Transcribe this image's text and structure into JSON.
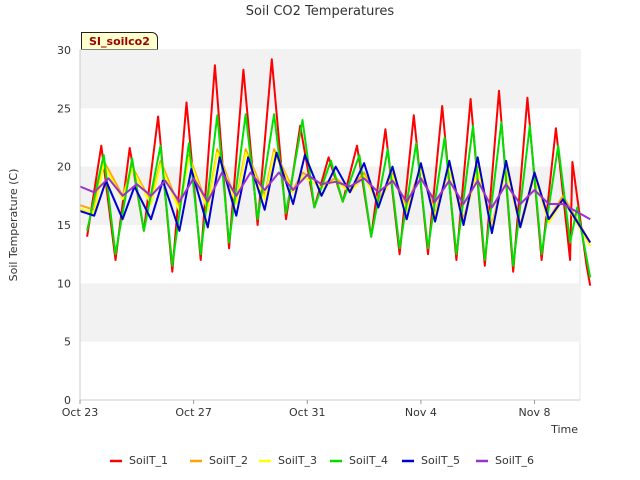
{
  "chart_data": {
    "type": "line",
    "title": "Soil CO2 Temperatures",
    "badge": "SI_soilco2",
    "xlabel": "Time",
    "ylabel": "Soil Temperature (C)",
    "ylim": [
      0,
      30
    ],
    "yticks": [
      0,
      5,
      10,
      15,
      20,
      25,
      30
    ],
    "xlim": [
      "2023-10-23",
      "2023-11-09.6"
    ],
    "xticks": [
      {
        "date": "2023-10-23",
        "label": "Oct 23"
      },
      {
        "date": "2023-10-27",
        "label": "Oct 27"
      },
      {
        "date": "2023-10-31",
        "label": "Oct 31"
      },
      {
        "date": "2023-11-04",
        "label": "Nov 4"
      },
      {
        "date": "2023-11-08",
        "label": "Nov 8"
      }
    ],
    "grid": "alternating horizontal bands",
    "legend": "bottom",
    "series": [
      {
        "name": "SoilT_1",
        "color": "#ff0000",
        "points": [
          [
            "2023-10-23T06:00",
            14.0
          ],
          [
            "2023-10-23T18:00",
            21.8
          ],
          [
            "2023-10-24T06:00",
            12.0
          ],
          [
            "2023-10-24T18:00",
            21.6
          ],
          [
            "2023-10-25T06:00",
            14.5
          ],
          [
            "2023-10-25T18:00",
            24.3
          ],
          [
            "2023-10-26T06:00",
            11.0
          ],
          [
            "2023-10-26T18:00",
            25.5
          ],
          [
            "2023-10-27T06:00",
            12.0
          ],
          [
            "2023-10-27T18:00",
            28.7
          ],
          [
            "2023-10-28T06:00",
            13.0
          ],
          [
            "2023-10-28T18:00",
            28.3
          ],
          [
            "2023-10-29T06:00",
            15.0
          ],
          [
            "2023-10-29T18:00",
            29.2
          ],
          [
            "2023-10-30T06:00",
            15.5
          ],
          [
            "2023-10-30T18:00",
            23.5
          ],
          [
            "2023-10-31T06:00",
            16.5
          ],
          [
            "2023-10-31T18:00",
            20.8
          ],
          [
            "2023-11-01T06:00",
            17.0
          ],
          [
            "2023-11-01T18:00",
            21.8
          ],
          [
            "2023-11-02T06:00",
            14.0
          ],
          [
            "2023-11-02T18:00",
            23.2
          ],
          [
            "2023-11-03T06:00",
            12.5
          ],
          [
            "2023-11-03T18:00",
            24.4
          ],
          [
            "2023-11-04T06:00",
            12.5
          ],
          [
            "2023-11-04T18:00",
            25.2
          ],
          [
            "2023-11-05T06:00",
            12.0
          ],
          [
            "2023-11-05T18:00",
            25.8
          ],
          [
            "2023-11-06T06:00",
            11.5
          ],
          [
            "2023-11-06T18:00",
            26.5
          ],
          [
            "2023-11-07T06:00",
            11.0
          ],
          [
            "2023-11-07T18:00",
            25.9
          ],
          [
            "2023-11-08T06:00",
            12.0
          ],
          [
            "2023-11-08T18:00",
            23.3
          ],
          [
            "2023-11-09T06:00",
            12.0
          ],
          [
            "2023-11-09T08:00",
            20.4
          ],
          [
            "2023-11-09T20:00",
            11.5
          ],
          [
            "2023-11-09T23:00",
            9.8
          ]
        ]
      },
      {
        "name": "SoilT_2",
        "color": "#ffa500",
        "points": [
          [
            "2023-10-23T00:00",
            16.7
          ],
          [
            "2023-10-23T12:00",
            16.3
          ],
          [
            "2023-10-23T20:00",
            20.5
          ],
          [
            "2023-10-24T12:00",
            17.5
          ],
          [
            "2023-10-24T20:00",
            20.0
          ],
          [
            "2023-10-25T12:00",
            17.0
          ],
          [
            "2023-10-25T20:00",
            20.5
          ],
          [
            "2023-10-26T12:00",
            16.5
          ],
          [
            "2023-10-26T20:00",
            21.0
          ],
          [
            "2023-10-27T12:00",
            16.5
          ],
          [
            "2023-10-27T20:00",
            21.5
          ],
          [
            "2023-10-28T12:00",
            17.0
          ],
          [
            "2023-10-28T20:00",
            21.5
          ],
          [
            "2023-10-29T12:00",
            17.5
          ],
          [
            "2023-10-29T20:00",
            21.5
          ],
          [
            "2023-10-30T12:00",
            18.0
          ],
          [
            "2023-10-30T20:00",
            19.5
          ],
          [
            "2023-10-31T12:00",
            18.5
          ],
          [
            "2023-11-01T00:00",
            19.0
          ],
          [
            "2023-11-01T12:00",
            18.0
          ],
          [
            "2023-11-02T00:00",
            19.5
          ],
          [
            "2023-11-02T12:00",
            17.0
          ],
          [
            "2023-11-03T00:00",
            19.5
          ],
          [
            "2023-11-03T12:00",
            16.5
          ],
          [
            "2023-11-04T00:00",
            20.0
          ],
          [
            "2023-11-04T12:00",
            16.0
          ],
          [
            "2023-11-05T00:00",
            20.0
          ],
          [
            "2023-11-05T12:00",
            15.5
          ],
          [
            "2023-11-06T00:00",
            20.0
          ],
          [
            "2023-11-06T12:00",
            15.0
          ],
          [
            "2023-11-07T00:00",
            20.0
          ],
          [
            "2023-11-07T12:00",
            15.0
          ],
          [
            "2023-11-08T00:00",
            19.5
          ],
          [
            "2023-11-08T12:00",
            15.5
          ],
          [
            "2023-11-09T00:00",
            17.5
          ],
          [
            "2023-11-09T23:00",
            13.5
          ]
        ]
      },
      {
        "name": "SoilT_3",
        "color": "#ffff00",
        "points": [
          [
            "2023-10-23T00:00",
            16.4
          ],
          [
            "2023-10-23T12:00",
            16.0
          ],
          [
            "2023-10-23T20:00",
            20.2
          ],
          [
            "2023-10-24T12:00",
            17.2
          ],
          [
            "2023-10-24T20:00",
            19.8
          ],
          [
            "2023-10-25T12:00",
            16.8
          ],
          [
            "2023-10-25T20:00",
            20.2
          ],
          [
            "2023-10-26T12:00",
            16.2
          ],
          [
            "2023-10-26T20:00",
            20.8
          ],
          [
            "2023-10-27T12:00",
            16.2
          ],
          [
            "2023-10-27T20:00",
            21.2
          ],
          [
            "2023-10-28T12:00",
            16.8
          ],
          [
            "2023-10-28T20:00",
            21.2
          ],
          [
            "2023-10-29T12:00",
            17.2
          ],
          [
            "2023-10-29T20:00",
            21.2
          ],
          [
            "2023-10-30T12:00",
            17.8
          ],
          [
            "2023-10-30T20:00",
            19.2
          ],
          [
            "2023-10-31T12:00",
            18.2
          ],
          [
            "2023-11-01T00:00",
            18.8
          ],
          [
            "2023-11-01T12:00",
            17.8
          ],
          [
            "2023-11-02T00:00",
            19.2
          ],
          [
            "2023-11-02T12:00",
            16.8
          ],
          [
            "2023-11-03T00:00",
            19.2
          ],
          [
            "2023-11-03T12:00",
            16.2
          ],
          [
            "2023-11-04T00:00",
            19.8
          ],
          [
            "2023-11-04T12:00",
            15.8
          ],
          [
            "2023-11-05T00:00",
            19.8
          ],
          [
            "2023-11-05T12:00",
            15.2
          ],
          [
            "2023-11-06T00:00",
            19.8
          ],
          [
            "2023-11-06T12:00",
            14.8
          ],
          [
            "2023-11-07T00:00",
            19.8
          ],
          [
            "2023-11-07T12:00",
            14.8
          ],
          [
            "2023-11-08T00:00",
            19.2
          ],
          [
            "2023-11-08T12:00",
            15.2
          ],
          [
            "2023-11-09T00:00",
            17.2
          ],
          [
            "2023-11-09T23:00",
            13.2
          ]
        ]
      },
      {
        "name": "SoilT_4",
        "color": "#00e000",
        "points": [
          [
            "2023-10-23T06:00",
            14.5
          ],
          [
            "2023-10-23T20:00",
            21.0
          ],
          [
            "2023-10-24T06:00",
            12.5
          ],
          [
            "2023-10-24T20:00",
            20.7
          ],
          [
            "2023-10-25T06:00",
            14.5
          ],
          [
            "2023-10-25T20:00",
            21.8
          ],
          [
            "2023-10-26T06:00",
            11.5
          ],
          [
            "2023-10-26T20:00",
            22.0
          ],
          [
            "2023-10-27T06:00",
            12.5
          ],
          [
            "2023-10-27T20:00",
            24.4
          ],
          [
            "2023-10-28T06:00",
            13.5
          ],
          [
            "2023-10-28T20:00",
            24.5
          ],
          [
            "2023-10-29T06:00",
            15.5
          ],
          [
            "2023-10-29T20:00",
            24.5
          ],
          [
            "2023-10-30T06:00",
            16.0
          ],
          [
            "2023-10-30T20:00",
            24.0
          ],
          [
            "2023-10-31T06:00",
            16.5
          ],
          [
            "2023-10-31T20:00",
            20.5
          ],
          [
            "2023-11-01T06:00",
            17.0
          ],
          [
            "2023-11-01T20:00",
            21.0
          ],
          [
            "2023-11-02T06:00",
            14.0
          ],
          [
            "2023-11-02T20:00",
            21.5
          ],
          [
            "2023-11-03T06:00",
            13.0
          ],
          [
            "2023-11-03T20:00",
            22.0
          ],
          [
            "2023-11-04T06:00",
            13.0
          ],
          [
            "2023-11-04T20:00",
            22.5
          ],
          [
            "2023-11-05T06:00",
            12.5
          ],
          [
            "2023-11-05T20:00",
            23.5
          ],
          [
            "2023-11-06T06:00",
            12.0
          ],
          [
            "2023-11-06T20:00",
            23.8
          ],
          [
            "2023-11-07T06:00",
            11.5
          ],
          [
            "2023-11-07T20:00",
            23.5
          ],
          [
            "2023-11-08T06:00",
            12.5
          ],
          [
            "2023-11-08T20:00",
            21.8
          ],
          [
            "2023-11-09T06:00",
            13.5
          ],
          [
            "2023-11-09T12:00",
            16.5
          ],
          [
            "2023-11-09T23:00",
            10.5
          ]
        ]
      },
      {
        "name": "SoilT_5",
        "color": "#0000cc",
        "points": [
          [
            "2023-10-23T00:00",
            16.2
          ],
          [
            "2023-10-23T12:00",
            15.8
          ],
          [
            "2023-10-23T22:00",
            18.8
          ],
          [
            "2023-10-24T12:00",
            15.5
          ],
          [
            "2023-10-24T22:00",
            18.3
          ],
          [
            "2023-10-25T12:00",
            15.5
          ],
          [
            "2023-10-25T22:00",
            18.8
          ],
          [
            "2023-10-26T12:00",
            14.5
          ],
          [
            "2023-10-26T22:00",
            19.8
          ],
          [
            "2023-10-27T12:00",
            14.8
          ],
          [
            "2023-10-27T22:00",
            20.8
          ],
          [
            "2023-10-28T12:00",
            15.8
          ],
          [
            "2023-10-28T22:00",
            20.8
          ],
          [
            "2023-10-29T12:00",
            16.3
          ],
          [
            "2023-10-29T22:00",
            21.2
          ],
          [
            "2023-10-30T12:00",
            16.8
          ],
          [
            "2023-10-30T22:00",
            21.0
          ],
          [
            "2023-10-31T12:00",
            17.5
          ],
          [
            "2023-11-01T00:00",
            20.0
          ],
          [
            "2023-11-01T12:00",
            17.8
          ],
          [
            "2023-11-02T00:00",
            20.3
          ],
          [
            "2023-11-02T12:00",
            16.5
          ],
          [
            "2023-11-03T00:00",
            20.0
          ],
          [
            "2023-11-03T12:00",
            15.5
          ],
          [
            "2023-11-04T00:00",
            20.3
          ],
          [
            "2023-11-04T12:00",
            15.3
          ],
          [
            "2023-11-05T00:00",
            20.5
          ],
          [
            "2023-11-05T12:00",
            15.0
          ],
          [
            "2023-11-06T00:00",
            20.8
          ],
          [
            "2023-11-06T12:00",
            14.3
          ],
          [
            "2023-11-07T00:00",
            20.5
          ],
          [
            "2023-11-07T12:00",
            14.8
          ],
          [
            "2023-11-08T00:00",
            19.5
          ],
          [
            "2023-11-08T12:00",
            15.5
          ],
          [
            "2023-11-09T00:00",
            17.2
          ],
          [
            "2023-11-09T23:00",
            13.5
          ]
        ]
      },
      {
        "name": "SoilT_6",
        "color": "#9933cc",
        "points": [
          [
            "2023-10-23T00:00",
            18.3
          ],
          [
            "2023-10-23T12:00",
            17.8
          ],
          [
            "2023-10-24T00:00",
            19.0
          ],
          [
            "2023-10-24T12:00",
            17.5
          ],
          [
            "2023-10-25T00:00",
            18.5
          ],
          [
            "2023-10-25T12:00",
            17.5
          ],
          [
            "2023-10-26T00:00",
            18.8
          ],
          [
            "2023-10-26T12:00",
            17.0
          ],
          [
            "2023-10-27T00:00",
            19.0
          ],
          [
            "2023-10-27T12:00",
            17.0
          ],
          [
            "2023-10-28T00:00",
            19.5
          ],
          [
            "2023-10-28T12:00",
            17.5
          ],
          [
            "2023-10-29T00:00",
            19.5
          ],
          [
            "2023-10-29T12:00",
            18.0
          ],
          [
            "2023-10-30T00:00",
            19.5
          ],
          [
            "2023-10-30T12:00",
            18.0
          ],
          [
            "2023-10-31T00:00",
            19.3
          ],
          [
            "2023-10-31T12:00",
            18.5
          ],
          [
            "2023-11-01T00:00",
            18.7
          ],
          [
            "2023-11-01T12:00",
            18.3
          ],
          [
            "2023-11-02T00:00",
            19.0
          ],
          [
            "2023-11-02T12:00",
            17.8
          ],
          [
            "2023-11-03T00:00",
            18.8
          ],
          [
            "2023-11-03T12:00",
            17.0
          ],
          [
            "2023-11-04T00:00",
            19.0
          ],
          [
            "2023-11-04T12:00",
            17.0
          ],
          [
            "2023-11-05T00:00",
            18.8
          ],
          [
            "2023-11-05T12:00",
            16.8
          ],
          [
            "2023-11-06T00:00",
            18.8
          ],
          [
            "2023-11-06T12:00",
            16.5
          ],
          [
            "2023-11-07T00:00",
            18.5
          ],
          [
            "2023-11-07T12:00",
            16.8
          ],
          [
            "2023-11-08T00:00",
            18.0
          ],
          [
            "2023-11-08T12:00",
            16.8
          ],
          [
            "2023-11-09T00:00",
            16.8
          ],
          [
            "2023-11-09T23:00",
            15.5
          ]
        ]
      }
    ]
  }
}
